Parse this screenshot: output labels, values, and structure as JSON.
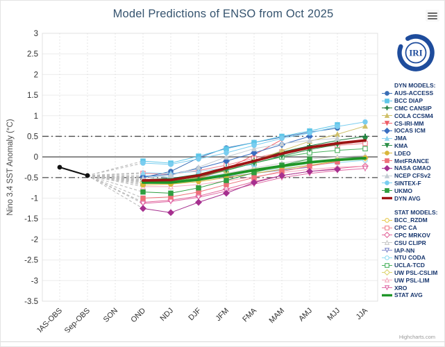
{
  "title": "Model Predictions of ENSO from Oct 2025",
  "logo": {
    "text": "IRI"
  },
  "credits": "Highcharts.com",
  "menu": {
    "name": "chart context menu"
  },
  "chart_data": {
    "type": "line",
    "title": "Model Predictions of ENSO from Oct 2025",
    "xlabel": "",
    "ylabel": "Nino 3.4 SST Anomaly (°C)",
    "ylim": [
      -3.5,
      3
    ],
    "ytick_step": 0.5,
    "grid": true,
    "legend_position": "right",
    "categories": [
      "JAS-OBS",
      "Sep-OBS",
      "SON",
      "OND",
      "NDJ",
      "DJF",
      "JFM",
      "FMA",
      "MAM",
      "AMJ",
      "MJJ",
      "JJA"
    ],
    "reference_lines": [
      {
        "value": 0,
        "style": "solid"
      },
      {
        "value": 0.5,
        "style": "dashdot"
      },
      {
        "value": -0.5,
        "style": "dashdot"
      }
    ],
    "observation": {
      "name": "OBS",
      "color": "#111111",
      "values": [
        -0.25,
        -0.45
      ],
      "category_indices": [
        0,
        1
      ]
    },
    "fan": {
      "from_index": 1,
      "from_value": -0.45,
      "to_index": 3,
      "color": "#bcbcbc"
    },
    "groups": [
      {
        "id": "dyn",
        "header": "DYN MODELS:"
      },
      {
        "id": "stat",
        "header": "STAT MODELS:"
      }
    ],
    "series": [
      {
        "name": "AUS-ACCESS",
        "group": "dyn",
        "color": "#3a6eb5",
        "marker": "circle",
        "filled": true,
        "avg": false,
        "values": [
          null,
          null,
          null,
          -0.5,
          -0.35,
          -0.02,
          0.22,
          0.35,
          0.48,
          0.6,
          0.7,
          null
        ]
      },
      {
        "name": "BCC DIAP",
        "group": "dyn",
        "color": "#5ec6e8",
        "marker": "square",
        "filled": true,
        "avg": false,
        "values": [
          null,
          null,
          null,
          -0.1,
          -0.15,
          0.02,
          0.2,
          0.35,
          0.5,
          0.63,
          0.78,
          null
        ]
      },
      {
        "name": "CMC CANSIP",
        "group": "dyn",
        "color": "#1a7a3a",
        "marker": "plus",
        "filled": true,
        "avg": false,
        "values": [
          null,
          null,
          null,
          -0.55,
          -0.52,
          -0.42,
          -0.25,
          -0.08,
          0.12,
          0.27,
          0.4,
          0.5
        ]
      },
      {
        "name": "COLA CCSM4",
        "group": "dyn",
        "color": "#cfc069",
        "marker": "triangle",
        "filled": true,
        "avg": false,
        "values": [
          null,
          null,
          null,
          -0.62,
          -0.62,
          -0.5,
          -0.33,
          -0.1,
          0.15,
          0.38,
          0.55,
          0.75
        ]
      },
      {
        "name": "CS-IRI-MM",
        "group": "dyn",
        "color": "#ef5f68",
        "marker": "triangle-down",
        "filled": true,
        "avg": false,
        "values": [
          null,
          null,
          null,
          -0.58,
          -0.62,
          -0.52,
          -0.3,
          0.05,
          0.42,
          null,
          null,
          null
        ]
      },
      {
        "name": "IOCAS ICM",
        "group": "dyn",
        "color": "#3a6ec0",
        "marker": "diamond",
        "filled": true,
        "avg": false,
        "values": [
          null,
          null,
          null,
          -0.48,
          -0.42,
          -0.28,
          -0.1,
          0.1,
          0.3,
          0.5,
          null,
          null
        ]
      },
      {
        "name": "JMA",
        "group": "dyn",
        "color": "#8fd4f0",
        "marker": "triangle",
        "filled": true,
        "avg": false,
        "values": [
          null,
          null,
          null,
          -0.38,
          -0.4,
          -0.35,
          -0.27,
          -0.18,
          null,
          null,
          null,
          null
        ]
      },
      {
        "name": "KMA",
        "group": "dyn",
        "color": "#2c9048",
        "marker": "triangle-down",
        "filled": true,
        "avg": false,
        "values": [
          null,
          null,
          null,
          -0.6,
          -0.58,
          -0.48,
          -0.32,
          -0.15,
          0.02,
          0.18,
          0.3,
          0.42
        ]
      },
      {
        "name": "LDEO",
        "group": "dyn",
        "color": "#d9b63a",
        "marker": "circle",
        "filled": true,
        "avg": false,
        "values": [
          null,
          null,
          null,
          -0.68,
          -0.66,
          -0.6,
          -0.5,
          -0.4,
          -0.3,
          -0.2,
          -0.1,
          -0.02
        ]
      },
      {
        "name": "MetFRANCE",
        "group": "dyn",
        "color": "#ee7079",
        "marker": "square",
        "filled": true,
        "avg": false,
        "values": [
          null,
          null,
          null,
          -1.0,
          -0.97,
          -0.85,
          -0.67,
          -0.5,
          -0.35,
          -0.22,
          -0.12,
          null
        ]
      },
      {
        "name": "NASA GMAO",
        "group": "dyn",
        "color": "#a6308f",
        "marker": "diamond",
        "filled": true,
        "avg": false,
        "values": [
          null,
          null,
          null,
          -1.25,
          -1.35,
          -1.1,
          -0.88,
          -0.62,
          -0.45,
          -0.35,
          -0.3,
          null
        ]
      },
      {
        "name": "NCEP CFSv2",
        "group": "dyn",
        "color": "#c4cdd4",
        "marker": "triangle",
        "filled": true,
        "avg": false,
        "values": [
          null,
          null,
          null,
          -0.52,
          -0.45,
          -0.25,
          0.0,
          0.2,
          0.32,
          0.4,
          0.45,
          null
        ]
      },
      {
        "name": "SINTEX-F",
        "group": "dyn",
        "color": "#79cdf0",
        "marker": "circle",
        "filled": true,
        "avg": false,
        "values": [
          null,
          null,
          null,
          -0.15,
          -0.18,
          -0.05,
          0.1,
          0.28,
          0.45,
          0.58,
          0.74,
          0.85
        ]
      },
      {
        "name": "UKMO",
        "group": "dyn",
        "color": "#2f9e3f",
        "marker": "square",
        "filled": true,
        "avg": false,
        "values": [
          null,
          null,
          null,
          -0.85,
          -0.88,
          -0.75,
          -0.57,
          -0.38,
          -0.2,
          -0.05,
          null,
          null
        ]
      },
      {
        "name": "DYN AVG",
        "group": "dyn",
        "color": "#9e1414",
        "marker": "line",
        "filled": true,
        "avg": true,
        "values": [
          null,
          null,
          null,
          -0.57,
          -0.56,
          -0.45,
          -0.27,
          -0.1,
          0.08,
          0.23,
          0.33,
          0.4
        ]
      },
      {
        "name": "BCC_RZDM",
        "group": "stat",
        "color": "#e7c94c",
        "marker": "circle",
        "filled": false,
        "avg": false,
        "values": [
          null,
          null,
          null,
          -0.6,
          -0.58,
          -0.52,
          -0.42,
          -0.3,
          -0.2,
          -0.12,
          -0.06,
          -0.02
        ]
      },
      {
        "name": "CPC CA",
        "group": "stat",
        "color": "#f0808e",
        "marker": "square",
        "filled": false,
        "avg": false,
        "values": [
          null,
          null,
          null,
          -0.4,
          -0.42,
          -0.33,
          -0.2,
          -0.03,
          0.12,
          0.22,
          0.28,
          0.33
        ]
      },
      {
        "name": "CPC MRKOV",
        "group": "stat",
        "color": "#e2679b",
        "marker": "diamond",
        "filled": false,
        "avg": false,
        "values": [
          null,
          null,
          null,
          -1.1,
          -1.05,
          -0.95,
          -0.78,
          -0.6,
          -0.45,
          -0.35,
          -0.28,
          -0.22
        ]
      },
      {
        "name": "CSU CLIPR",
        "group": "stat",
        "color": "#c8c8c8",
        "marker": "triangle",
        "filled": false,
        "avg": false,
        "values": [
          null,
          null,
          null,
          -0.55,
          -0.55,
          -0.5,
          -0.4,
          -0.27,
          -0.15,
          -0.05,
          0.0,
          0.03
        ]
      },
      {
        "name": "IAP-NN",
        "group": "stat",
        "color": "#8089cc",
        "marker": "triangle-down",
        "filled": false,
        "avg": false,
        "values": [
          null,
          null,
          null,
          -0.6,
          -0.6,
          -0.56,
          -0.48,
          -0.4,
          -0.32,
          -0.25,
          null,
          null
        ]
      },
      {
        "name": "NTU CODA",
        "group": "stat",
        "color": "#8edcf2",
        "marker": "circle",
        "filled": false,
        "avg": false,
        "values": [
          null,
          null,
          null,
          -0.45,
          -0.5,
          -0.48,
          -0.42,
          -0.35,
          -0.28,
          -0.2,
          -0.14,
          -0.08
        ]
      },
      {
        "name": "UCLA-TCD",
        "group": "stat",
        "color": "#48b05c",
        "marker": "square",
        "filled": false,
        "avg": false,
        "values": [
          null,
          null,
          null,
          -0.65,
          -0.6,
          -0.5,
          -0.33,
          -0.15,
          0.0,
          0.1,
          0.16,
          0.2
        ]
      },
      {
        "name": "UW PSL-CSLIM",
        "group": "stat",
        "color": "#ddd36e",
        "marker": "diamond",
        "filled": false,
        "avg": false,
        "values": [
          null,
          null,
          null,
          -0.62,
          -0.6,
          -0.55,
          -0.45,
          -0.35,
          -0.25,
          -0.15,
          -0.08,
          -0.03
        ]
      },
      {
        "name": "UW PSL-LIM",
        "group": "stat",
        "color": "#f4a7bb",
        "marker": "triangle",
        "filled": false,
        "avg": false,
        "values": [
          null,
          null,
          null,
          -0.72,
          -0.72,
          -0.67,
          -0.58,
          -0.48,
          -0.38,
          -0.3,
          -0.25,
          -0.22
        ]
      },
      {
        "name": "XRO",
        "group": "stat",
        "color": "#e06aa6",
        "marker": "triangle-down",
        "filled": false,
        "avg": false,
        "values": [
          null,
          null,
          null,
          -1.13,
          -1.08,
          -0.98,
          -0.83,
          -0.66,
          -0.5,
          -0.4,
          -0.33,
          -0.28
        ]
      },
      {
        "name": "STAT AVG",
        "group": "stat",
        "color": "#1f9628",
        "marker": "line",
        "filled": true,
        "avg": true,
        "values": [
          null,
          null,
          null,
          -0.62,
          -0.62,
          -0.55,
          -0.44,
          -0.32,
          -0.22,
          -0.13,
          -0.07,
          -0.03
        ]
      }
    ]
  }
}
